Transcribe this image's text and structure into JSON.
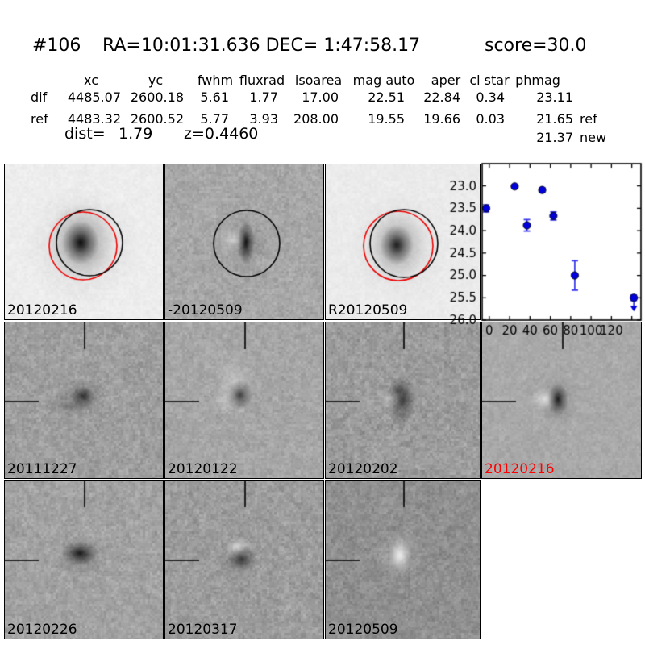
{
  "header": {
    "id": "#106",
    "ra_dec": "RA=10:01:31.636 DEC= 1:47:58.17",
    "score": "score=30.0"
  },
  "photometry_table": {
    "columns": [
      "xc",
      "yc",
      "fwhm",
      "fluxrad",
      "isoarea",
      "mag auto",
      "aper",
      "cl star",
      "phmag"
    ],
    "rows": [
      {
        "label": "dif",
        "values": [
          "4485.07",
          "2600.18",
          "5.61",
          "1.77",
          "17.00",
          "22.51",
          "22.84",
          "0.34",
          "23.11"
        ],
        "suffix": ""
      },
      {
        "label": "ref",
        "values": [
          "4483.32",
          "2600.52",
          "5.77",
          "3.93",
          "208.00",
          "19.55",
          "19.66",
          "0.03",
          "21.65"
        ],
        "suffix": "ref"
      }
    ],
    "extra_phmag": {
      "value": "21.37",
      "suffix": "new"
    },
    "dist_label": "dist=",
    "dist_value": "1.79",
    "z_text": "z=0.4460"
  },
  "cutouts": {
    "panels": [
      {
        "id": "new-20120216",
        "label": "20120216",
        "label_color": "#000000",
        "row": 0,
        "col": 0,
        "overlays": [
          "aperture-circle-red",
          "aperture-circle-black"
        ]
      },
      {
        "id": "dif-20120509",
        "label": "-20120509",
        "label_color": "#000000",
        "row": 0,
        "col": 1,
        "overlays": [
          "aperture-circle-black"
        ]
      },
      {
        "id": "ref-20120509",
        "label": "R20120509",
        "label_color": "#000000",
        "row": 0,
        "col": 2,
        "overlays": [
          "aperture-circle-red",
          "aperture-circle-black"
        ]
      },
      {
        "id": "diff-20111227",
        "label": "20111227",
        "label_color": "#000000",
        "row": 1,
        "col": 0,
        "overlays": [
          "crosshair-marker"
        ]
      },
      {
        "id": "diff-20120122",
        "label": "20120122",
        "label_color": "#000000",
        "row": 1,
        "col": 1,
        "overlays": [
          "crosshair-marker"
        ]
      },
      {
        "id": "diff-20120202",
        "label": "20120202",
        "label_color": "#000000",
        "row": 1,
        "col": 2,
        "overlays": [
          "crosshair-marker"
        ]
      },
      {
        "id": "diff-20120216",
        "label": "20120216",
        "label_color": "#ff0000",
        "row": 1,
        "col": 3,
        "overlays": [
          "crosshair-marker"
        ]
      },
      {
        "id": "diff-20120226",
        "label": "20120226",
        "label_color": "#000000",
        "row": 2,
        "col": 0,
        "overlays": [
          "crosshair-marker"
        ]
      },
      {
        "id": "diff-20120317",
        "label": "20120317",
        "label_color": "#000000",
        "row": 2,
        "col": 1,
        "overlays": [
          "crosshair-marker"
        ]
      },
      {
        "id": "diff-20120509",
        "label": "20120509",
        "label_color": "#000000",
        "row": 2,
        "col": 2,
        "overlays": [
          "crosshair-marker"
        ]
      }
    ]
  },
  "chart_data": {
    "type": "scatter",
    "title": "",
    "xlabel": "",
    "ylabel": "",
    "x_ticks": [
      0,
      20,
      40,
      60,
      80,
      100,
      120,
      140
    ],
    "x_tick_labels": [
      "0",
      "20",
      "40",
      "60",
      "80",
      "100",
      "120",
      ""
    ],
    "y_ticks": [
      23.0,
      23.5,
      24.0,
      24.5,
      25.0,
      25.5,
      26.0
    ],
    "y_tick_labels": [
      "23.0",
      "23.5",
      "24.0",
      "24.5",
      "25.0",
      "25.5",
      "26.0"
    ],
    "xlim": [
      -7,
      149
    ],
    "ylim": [
      26.0,
      22.5
    ],
    "y_axis_inverted": true,
    "grid": false,
    "legend_position": "none",
    "marker_color": "#0000dd",
    "error_bar_color": "#3333ee",
    "series": [
      {
        "name": "lightcurve-magnitude",
        "marker": "circle",
        "points": [
          {
            "x": -3,
            "y": 23.5,
            "yerr": 0.08
          },
          {
            "x": 25,
            "y": 23.01,
            "yerr": 0.04
          },
          {
            "x": 37,
            "y": 23.88,
            "yerr": 0.13
          },
          {
            "x": 52,
            "y": 23.09,
            "yerr": 0.05
          },
          {
            "x": 63,
            "y": 23.67,
            "yerr": 0.09
          },
          {
            "x": 84,
            "y": 25.0,
            "yerr": 0.33
          }
        ]
      }
    ],
    "upper_limits": [
      {
        "x": 142,
        "y": 25.5,
        "yerr": 0.06
      }
    ]
  }
}
